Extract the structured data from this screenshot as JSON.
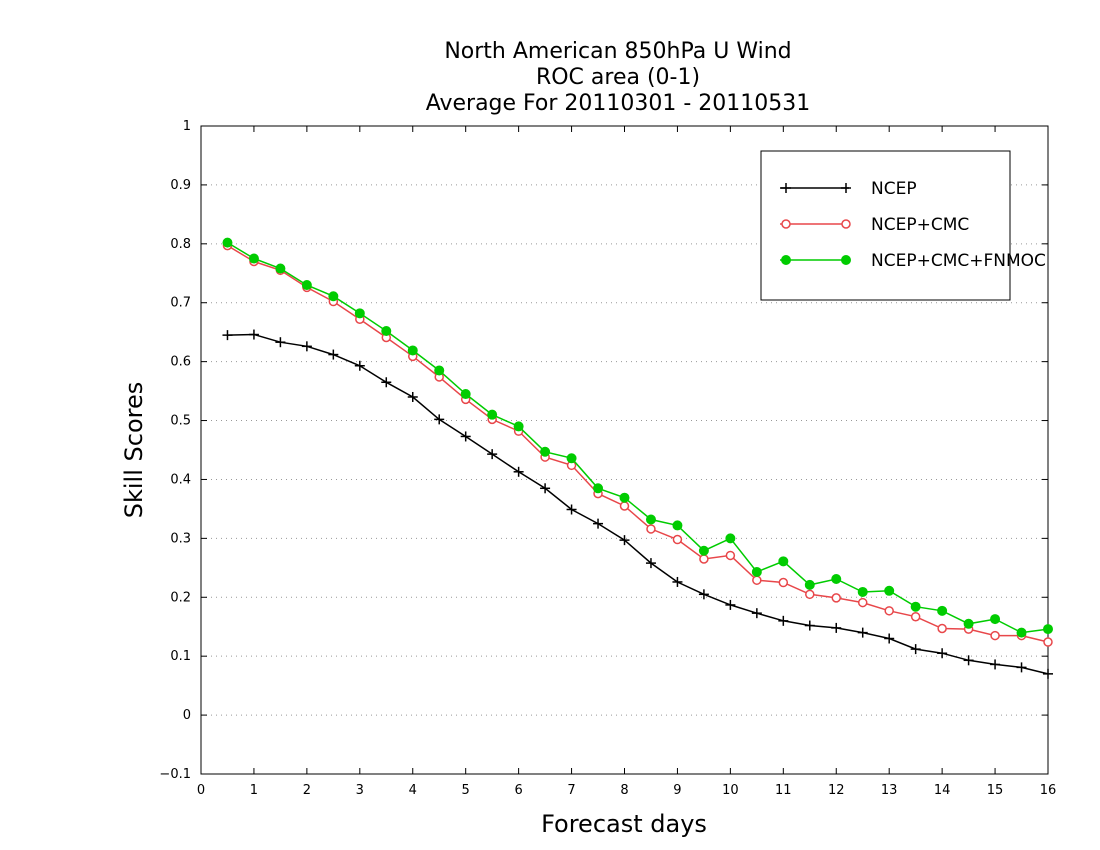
{
  "chart_data": {
    "type": "line",
    "title": [
      "North American 850hPa U Wind",
      "ROC area (0-1)",
      "Average For 20110301 - 20110531"
    ],
    "xlabel": "Forecast days",
    "ylabel": "Skill Scores",
    "xlim": [
      0,
      16
    ],
    "ylim": [
      -0.1,
      1
    ],
    "xticks": [
      "0",
      "1",
      "2",
      "3",
      "4",
      "5",
      "6",
      "7",
      "8",
      "9",
      "10",
      "11",
      "12",
      "13",
      "14",
      "15",
      "16"
    ],
    "yticks": [
      "−0.1",
      "0",
      "0.1",
      "0.2",
      "0.3",
      "0.4",
      "0.5",
      "0.6",
      "0.7",
      "0.8",
      "0.9",
      "1"
    ],
    "grid": "horizontal dotted",
    "legend_position": "top-right",
    "x": [
      0.5,
      1,
      1.5,
      2,
      2.5,
      3,
      3.5,
      4,
      4.5,
      5,
      5.5,
      6,
      6.5,
      7,
      7.5,
      8,
      8.5,
      9,
      9.5,
      10,
      10.5,
      11,
      11.5,
      12,
      12.5,
      13,
      13.5,
      14,
      14.5,
      15,
      15.5,
      16
    ],
    "series": [
      {
        "name": "NCEP",
        "color": "#000000",
        "marker": "plus",
        "values": [
          0.645,
          0.646,
          0.633,
          0.626,
          0.612,
          0.593,
          0.565,
          0.54,
          0.502,
          0.473,
          0.443,
          0.413,
          0.385,
          0.349,
          0.325,
          0.297,
          0.258,
          0.226,
          0.205,
          0.187,
          0.173,
          0.16,
          0.152,
          0.148,
          0.14,
          0.13,
          0.112,
          0.105,
          0.093,
          0.086,
          0.081,
          0.07
        ]
      },
      {
        "name": "NCEP+CMC",
        "color": "#e8474a",
        "marker": "open-circle",
        "values": [
          0.797,
          0.77,
          0.755,
          0.726,
          0.702,
          0.672,
          0.641,
          0.609,
          0.574,
          0.536,
          0.502,
          0.482,
          0.438,
          0.424,
          0.376,
          0.355,
          0.316,
          0.298,
          0.265,
          0.271,
          0.229,
          0.225,
          0.205,
          0.199,
          0.191,
          0.177,
          0.167,
          0.147,
          0.146,
          0.135,
          0.135,
          0.124
        ]
      },
      {
        "name": "NCEP+CMC+FNMOC",
        "color": "#00cc00",
        "marker": "filled-circle",
        "values": [
          0.802,
          0.775,
          0.758,
          0.73,
          0.711,
          0.682,
          0.652,
          0.619,
          0.585,
          0.545,
          0.51,
          0.49,
          0.447,
          0.436,
          0.385,
          0.369,
          0.332,
          0.322,
          0.279,
          0.3,
          0.243,
          0.261,
          0.221,
          0.231,
          0.209,
          0.211,
          0.184,
          0.177,
          0.155,
          0.163,
          0.14,
          0.146
        ]
      }
    ]
  }
}
